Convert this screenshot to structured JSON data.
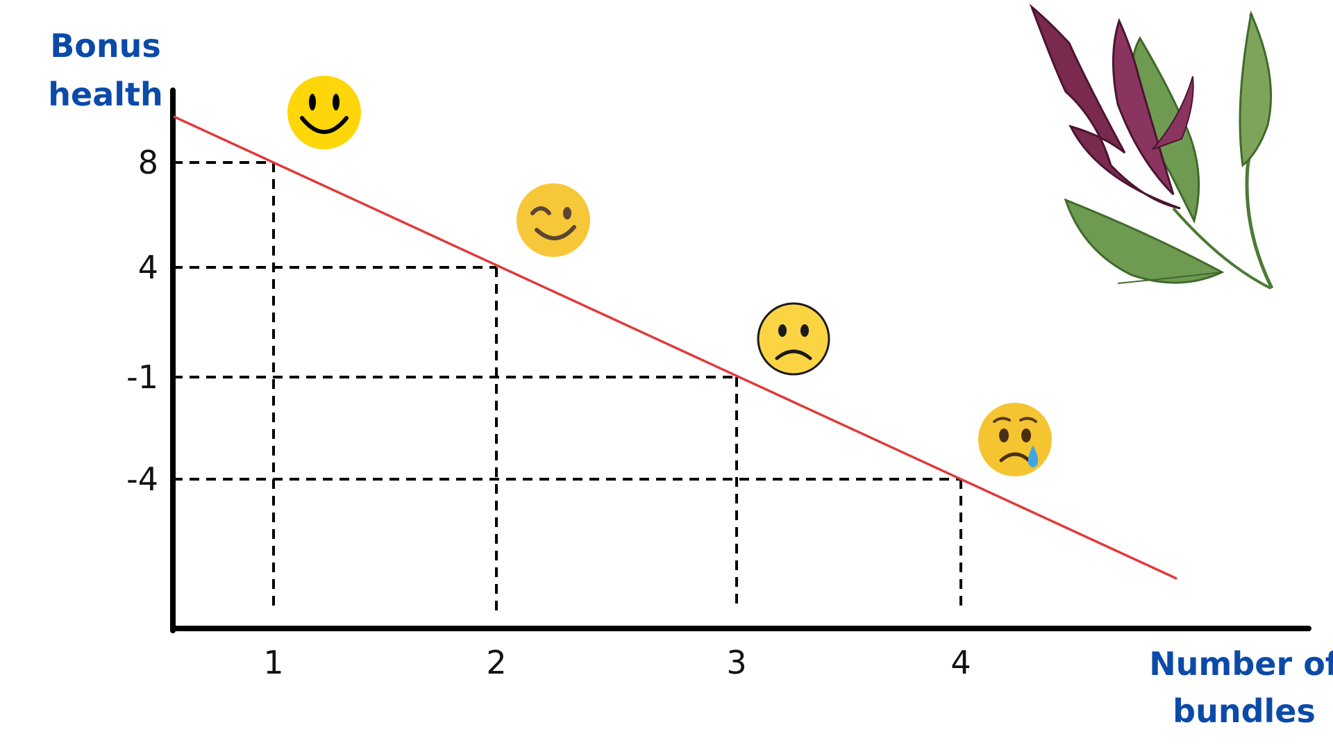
{
  "chart_data": {
    "type": "line",
    "xlabel": [
      "Number of",
      "bundles"
    ],
    "ylabel": [
      "Bonus",
      "health"
    ],
    "x": [
      1,
      2,
      3,
      4
    ],
    "y": [
      8,
      4,
      -1,
      -4
    ],
    "x_ticks": [
      "1",
      "2",
      "3",
      "4"
    ],
    "y_ticks": [
      "8",
      "4",
      "-1",
      "-4"
    ],
    "series": [
      {
        "values": [
          8,
          4,
          -1,
          -4
        ],
        "color": "#e03a3a"
      }
    ],
    "point_icons": [
      "smiling-face-icon",
      "winking-face-icon",
      "frowning-face-icon",
      "crying-face-icon"
    ],
    "guide_lines": "dashed",
    "grid": false,
    "decoration": "amaranth-plant-illustration"
  }
}
